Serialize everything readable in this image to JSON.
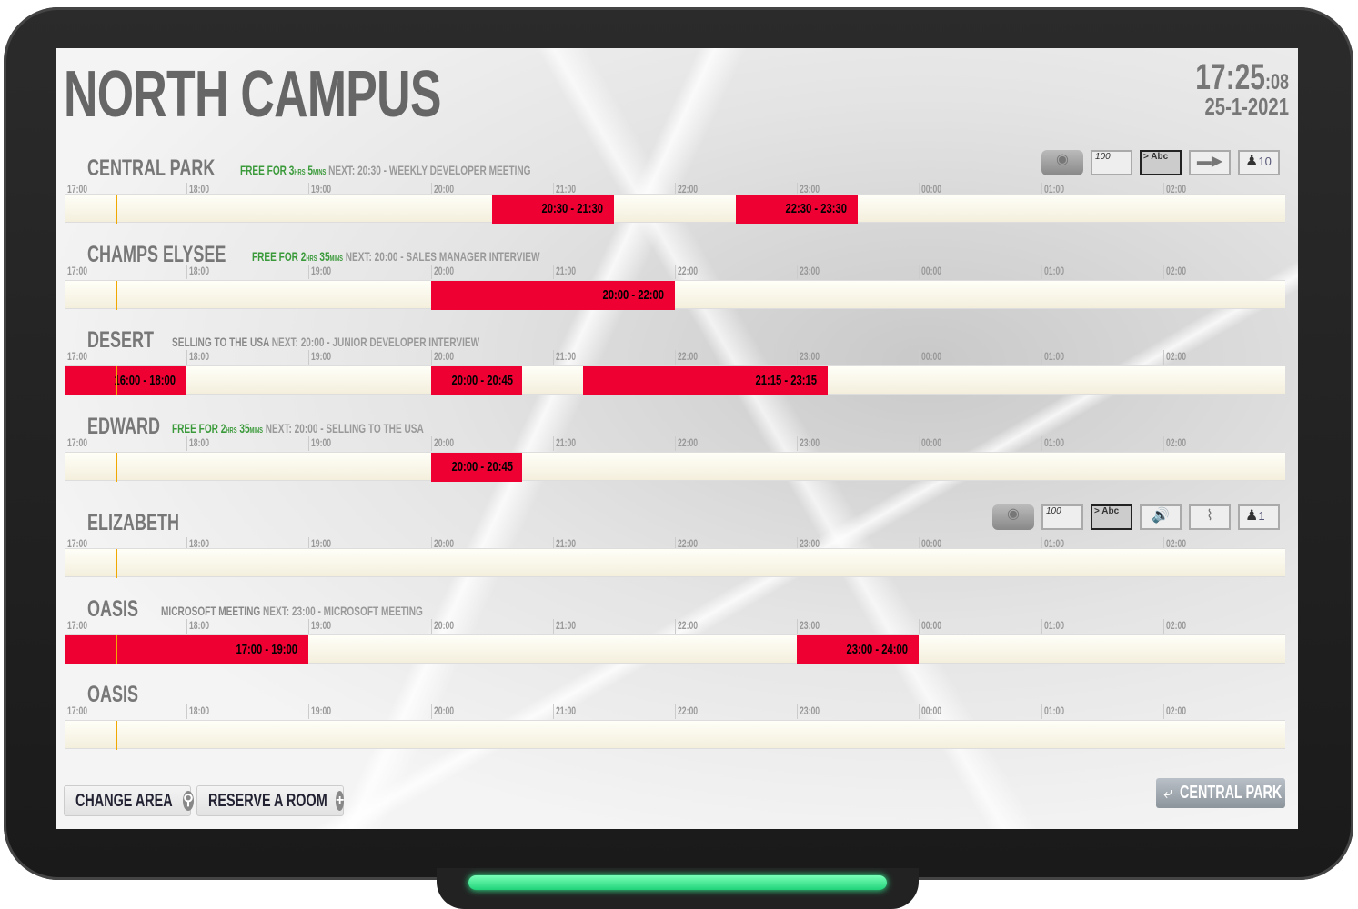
{
  "header": {
    "title": "NORTH CAMPUS",
    "time": "17:25",
    "seconds": ":08",
    "date": "25-1-2021"
  },
  "hours": [
    "17:00",
    "18:00",
    "19:00",
    "20:00",
    "21:00",
    "22:00",
    "23:00",
    "00:00",
    "01:00",
    "02:00"
  ],
  "current_time_marker": "17:25",
  "colors": {
    "booked": "#ee0033",
    "free_text": "#3a9a3a",
    "now_marker": "#f0a800",
    "led": "#21d37a"
  },
  "rooms": [
    {
      "name": "CENTRAL PARK",
      "status_free": "FREE FOR 3",
      "hrs": "HRS",
      "num2": "5",
      "mins": "MINS",
      "status": "",
      "next": "NEXT: 20:30 - WEEKLY DEVELOPER MEETING",
      "bookings": [
        {
          "label": "20:30 - 21:30",
          "start": "20:30",
          "end": "21:30"
        },
        {
          "label": "22:30 - 23:30",
          "start": "22:30",
          "end": "23:30"
        }
      ],
      "amenities": [
        "projector-icon",
        "whiteboard-icon",
        "screen-icon",
        "video-camera-icon",
        "capacity-icon"
      ],
      "capacity": "10",
      "whiteboard_text": "100",
      "screen_text": "> Abc"
    },
    {
      "name": "CHAMPS ELYSEE",
      "status_free": "FREE FOR 2",
      "hrs": "HRS",
      "num2": "35",
      "mins": "MINS",
      "status": "",
      "next": "NEXT: 20:00 - SALES MANAGER INTERVIEW",
      "bookings": [
        {
          "label": "20:00 - 22:00",
          "start": "20:00",
          "end": "22:00"
        }
      ]
    },
    {
      "name": "DESERT",
      "status_free": "",
      "status": "SELLING TO THE USA",
      "next": "NEXT: 20:00 - JUNIOR DEVELOPER INTERVIEW",
      "bookings": [
        {
          "label": "16:00 - 18:00",
          "start": "16:00",
          "end": "18:00"
        },
        {
          "label": "20:00 - 20:45",
          "start": "20:00",
          "end": "20:45"
        },
        {
          "label": "21:15 - 23:15",
          "start": "21:15",
          "end": "23:15"
        }
      ]
    },
    {
      "name": "EDWARD",
      "status_free": "FREE FOR 2",
      "hrs": "HRS",
      "num2": "35",
      "mins": "MINS",
      "status": "",
      "next": "NEXT: 20:00 - SELLING TO THE USA",
      "bookings": [
        {
          "label": "20:00 - 20:45",
          "start": "20:00",
          "end": "20:45"
        }
      ]
    },
    {
      "name": "ELIZABETH",
      "status_free": "",
      "status": "",
      "next": "",
      "bookings": [],
      "amenities": [
        "projector-icon",
        "whiteboard-icon",
        "screen-icon",
        "speaker-icon",
        "wifi-icon",
        "capacity-icon"
      ],
      "capacity": "1",
      "whiteboard_text": "100",
      "screen_text": "> Abc"
    },
    {
      "name": "OASIS",
      "status_free": "",
      "status": "MICROSOFT MEETING",
      "next": "NEXT: 23:00 - MICROSOFT MEETING",
      "bookings": [
        {
          "label": "17:00 - 19:00",
          "start": "17:00",
          "end": "19:00"
        },
        {
          "label": "23:00 - 24:00",
          "start": "23:00",
          "end": "24:00"
        }
      ]
    },
    {
      "name": "OASIS",
      "status_free": "",
      "status": "",
      "next": "",
      "bookings": []
    }
  ],
  "footer": {
    "change_area": "CHANGE AREA",
    "reserve_room": "RESERVE A ROOM",
    "back_label": "CENTRAL PARK"
  }
}
